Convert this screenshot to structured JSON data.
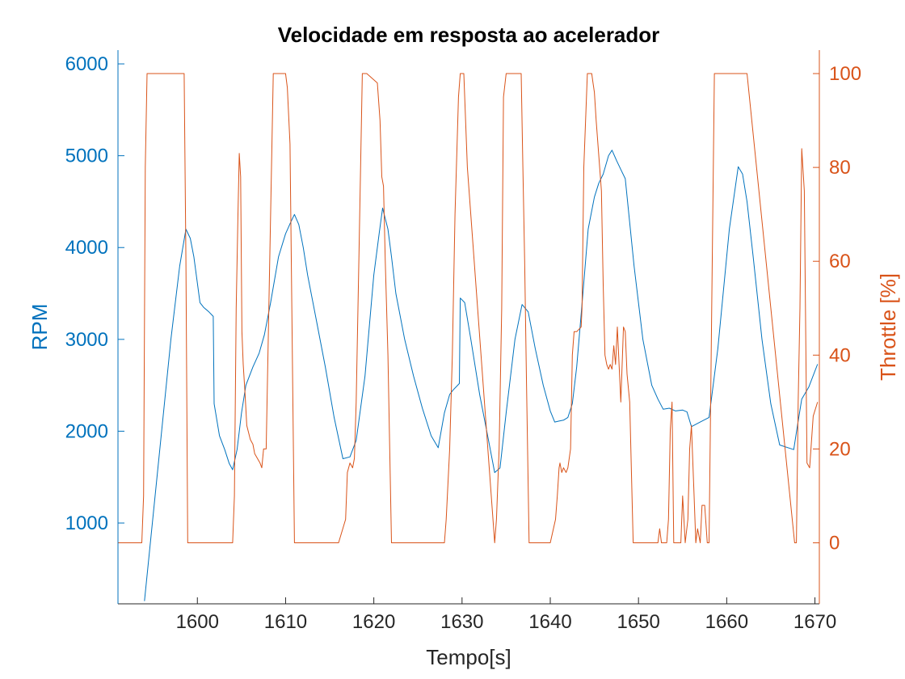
{
  "chart_data": {
    "type": "line",
    "title": "Velocidade em resposta ao acelerador",
    "xlabel": "Tempo[s]",
    "xlim": [
      1591,
      1670.5
    ],
    "xticks": [
      1600,
      1610,
      1620,
      1630,
      1640,
      1650,
      1660,
      1670
    ],
    "axes": {
      "left": {
        "ylabel": "RPM",
        "ylim": [
          120,
          6150
        ],
        "ticks": [
          1000,
          2000,
          3000,
          4000,
          5000,
          6000
        ],
        "color": "#0072BD"
      },
      "right": {
        "ylabel": "Throttle [%]",
        "ylim": [
          -13,
          105
        ],
        "ticks": [
          0,
          20,
          40,
          60,
          80,
          100
        ],
        "color": "#D95319"
      }
    },
    "grid": false,
    "series": [
      {
        "axis": "left",
        "x": [
          1594,
          1595,
          1596,
          1597,
          1598,
          1598.7,
          1599.2,
          1599.6,
          1600.3,
          1600.7,
          1601.3,
          1601.8,
          1601.9,
          1602.5,
          1603.1,
          1603.6,
          1604,
          1604.5,
          1605,
          1605.5,
          1606.3,
          1607,
          1607.6,
          1608.3,
          1609.2,
          1610,
          1610.6,
          1611,
          1611.5,
          1612,
          1612.5,
          1613.5,
          1614.5,
          1615.5,
          1616.5,
          1617.3,
          1618,
          1619,
          1620,
          1620.6,
          1621,
          1621.6,
          1622,
          1622.5,
          1623.5,
          1624.5,
          1625.5,
          1626.5,
          1627.3,
          1628,
          1628.6,
          1629,
          1629.5,
          1629.7,
          1629.8,
          1630.3,
          1631,
          1632,
          1633,
          1633.7,
          1634.3,
          1635,
          1636,
          1636.8,
          1637.5,
          1638.3,
          1639.2,
          1640,
          1640.5,
          1641,
          1641.5,
          1642,
          1642.5,
          1643,
          1643.7,
          1644.3,
          1645,
          1645.5,
          1646,
          1646.6,
          1647,
          1647.5,
          1648,
          1648.5,
          1649.5,
          1650.5,
          1651.5,
          1652.2,
          1652.8,
          1653.5,
          1654.2,
          1655,
          1655.5,
          1656,
          1657,
          1658,
          1659,
          1660.3,
          1661.3,
          1661.8,
          1662.3,
          1663,
          1664,
          1665,
          1666,
          1667.6,
          1668,
          1668.5,
          1669.3,
          1670.3
        ],
        "values": [
          150,
          1100,
          2050,
          3000,
          3800,
          4200,
          4100,
          3900,
          3400,
          3350,
          3300,
          3250,
          2300,
          1950,
          1800,
          1650,
          1580,
          1800,
          2200,
          2500,
          2700,
          2850,
          3050,
          3400,
          3900,
          4150,
          4280,
          4360,
          4250,
          4000,
          3700,
          3200,
          2700,
          2150,
          1700,
          1720,
          1900,
          2600,
          3700,
          4150,
          4430,
          4200,
          3900,
          3500,
          3000,
          2600,
          2250,
          1950,
          1820,
          2200,
          2400,
          2450,
          2500,
          2520,
          3450,
          3400,
          3000,
          2400,
          1900,
          1550,
          1600,
          2200,
          3000,
          3380,
          3300,
          2900,
          2500,
          2220,
          2100,
          2110,
          2120,
          2150,
          2300,
          2700,
          3500,
          4200,
          4550,
          4700,
          4800,
          5000,
          5060,
          4950,
          4850,
          4750,
          3800,
          3000,
          2500,
          2350,
          2240,
          2250,
          2220,
          2230,
          2210,
          2050,
          2100,
          2150,
          2900,
          4200,
          4880,
          4800,
          4500,
          3900,
          3000,
          2300,
          1850,
          1800,
          2050,
          2350,
          2480,
          2730
        ]
      },
      {
        "axis": "right",
        "x": [
          1591,
          1593.7,
          1593.9,
          1594.1,
          1594.3,
          1598.5,
          1598.7,
          1598.9,
          1604,
          1604.2,
          1604.4,
          1604.6,
          1604.75,
          1604.9,
          1605.05,
          1605.2,
          1605.4,
          1605.6,
          1606,
          1606.3,
          1606.5,
          1607.1,
          1607.3,
          1607.5,
          1607.8,
          1608.2,
          1608.6,
          1608.9,
          1610,
          1610.2,
          1610.5,
          1611,
          1616,
          1616.8,
          1617,
          1617.3,
          1617.6,
          1617.8,
          1618,
          1618.3,
          1618.7,
          1619,
          1619.2,
          1620.4,
          1620.7,
          1620.9,
          1621.1,
          1621.3,
          1621.6,
          1622,
          1628,
          1628.2,
          1628.6,
          1628.9,
          1629.2,
          1629.6,
          1629.8,
          1630,
          1630.2,
          1630.6,
          1633.7,
          1633.9,
          1634.2,
          1634.5,
          1634.7,
          1635,
          1636.7,
          1636.9,
          1637.1,
          1637.3,
          1637.6,
          1640,
          1640.6,
          1640.8,
          1641,
          1641.1,
          1641.3,
          1641.5,
          1641.8,
          1642,
          1642.3,
          1642.5,
          1642.7,
          1643,
          1643.5,
          1643.6,
          1643.8,
          1644.2,
          1644.5,
          1644.7,
          1644.85,
          1645,
          1645.2,
          1645.8,
          1646,
          1646.2,
          1646.4,
          1646.6,
          1646.8,
          1647,
          1647.2,
          1647.4,
          1647.6,
          1648,
          1648.3,
          1648.5,
          1648.7,
          1649,
          1649.4,
          1651.7,
          1652.2,
          1652.4,
          1652.6,
          1652.9,
          1653.2,
          1653.4,
          1653.6,
          1653.8,
          1654,
          1654.3,
          1654.5,
          1654.8,
          1655,
          1655.3,
          1655.6,
          1655.8,
          1656,
          1656.3,
          1656.5,
          1656.7,
          1657,
          1657.2,
          1657.5,
          1657.8,
          1658,
          1658.6,
          1661.4,
          1662,
          1662.3,
          1667.7,
          1667.9,
          1668.1,
          1668.3,
          1668.5,
          1668.8,
          1669.1,
          1669.4,
          1669.8,
          1670.3
        ],
        "values": [
          0,
          0,
          10,
          80,
          100,
          100,
          60,
          0,
          0,
          10,
          50,
          70,
          83,
          78,
          45,
          38,
          32,
          25,
          22,
          21,
          19,
          17,
          16,
          20,
          20,
          60,
          100,
          100,
          100,
          97,
          85,
          0,
          0,
          5,
          15,
          17,
          16,
          18,
          30,
          60,
          100,
          100,
          100,
          98,
          90,
          78,
          76,
          60,
          40,
          0,
          0,
          5,
          20,
          40,
          70,
          95,
          100,
          100,
          100,
          80,
          0,
          5,
          20,
          50,
          95,
          100,
          100,
          80,
          60,
          35,
          0,
          0,
          5,
          10,
          16,
          17,
          15,
          16,
          15,
          16,
          20,
          40,
          45,
          45,
          46,
          50,
          80,
          100,
          100,
          100,
          98,
          96,
          90,
          75,
          55,
          40,
          38,
          37,
          38,
          37,
          42,
          38,
          46,
          30,
          46,
          45,
          36,
          30,
          0,
          0,
          0,
          3,
          0,
          0,
          0,
          5,
          24,
          30,
          0,
          0,
          0,
          0,
          10,
          0,
          5,
          20,
          25,
          10,
          0,
          3,
          0,
          8,
          8,
          0,
          0,
          100,
          100,
          100,
          100,
          0,
          0,
          30,
          50,
          84,
          75,
          17,
          16,
          27,
          30
        ]
      }
    ]
  }
}
